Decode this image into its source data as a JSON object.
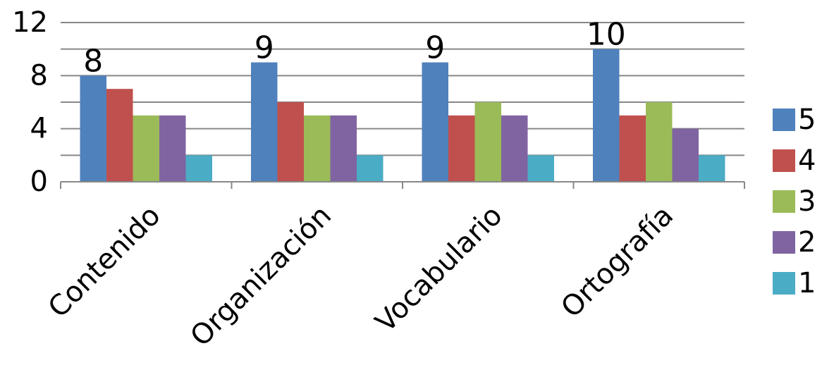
{
  "chart_data": {
    "type": "bar",
    "title": "",
    "xlabel": "",
    "ylabel": "",
    "categories": [
      "Contenido",
      "Organización",
      "Vocabulario",
      "Ortografía"
    ],
    "ylim": [
      0,
      12
    ],
    "y_ticks": [
      0,
      4,
      8,
      12
    ],
    "grid": true,
    "legend_position": "right",
    "series": [
      {
        "name": "5",
        "color": "#4F81BD",
        "values": [
          8,
          9,
          9,
          10
        ]
      },
      {
        "name": "4",
        "color": "#C0504D",
        "values": [
          7,
          6,
          5,
          5
        ]
      },
      {
        "name": "3",
        "color": "#9BBB59",
        "values": [
          5,
          5,
          6,
          6
        ]
      },
      {
        "name": "2",
        "color": "#8064A2",
        "values": [
          5,
          5,
          5,
          4
        ]
      },
      {
        "name": "1",
        "color": "#4BACC6",
        "values": [
          2,
          2,
          2,
          2
        ]
      }
    ],
    "data_labels": {
      "series": "5",
      "values": [
        "8",
        "9",
        "9",
        "10"
      ]
    }
  }
}
